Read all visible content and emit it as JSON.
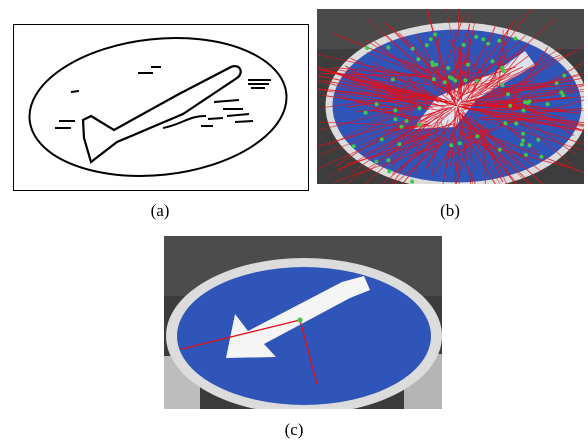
{
  "figure": {
    "panels": [
      {
        "id": "a",
        "caption": "(a)",
        "content": "edge-map-of-sign"
      },
      {
        "id": "b",
        "caption": "(b)",
        "content": "feature-points-with-hough-lines"
      },
      {
        "id": "c",
        "caption": "(c)",
        "content": "detected-arrow-direction"
      }
    ]
  },
  "colors": {
    "edge_stroke": "#000000",
    "sign_blue": "#2f55b8",
    "arrow_white": "#f2f2f2",
    "line_red": "#e0101a",
    "point_green": "#3cc94a",
    "background_dark": "#3a3a3a",
    "pole_gray": "#b8b8b8"
  }
}
